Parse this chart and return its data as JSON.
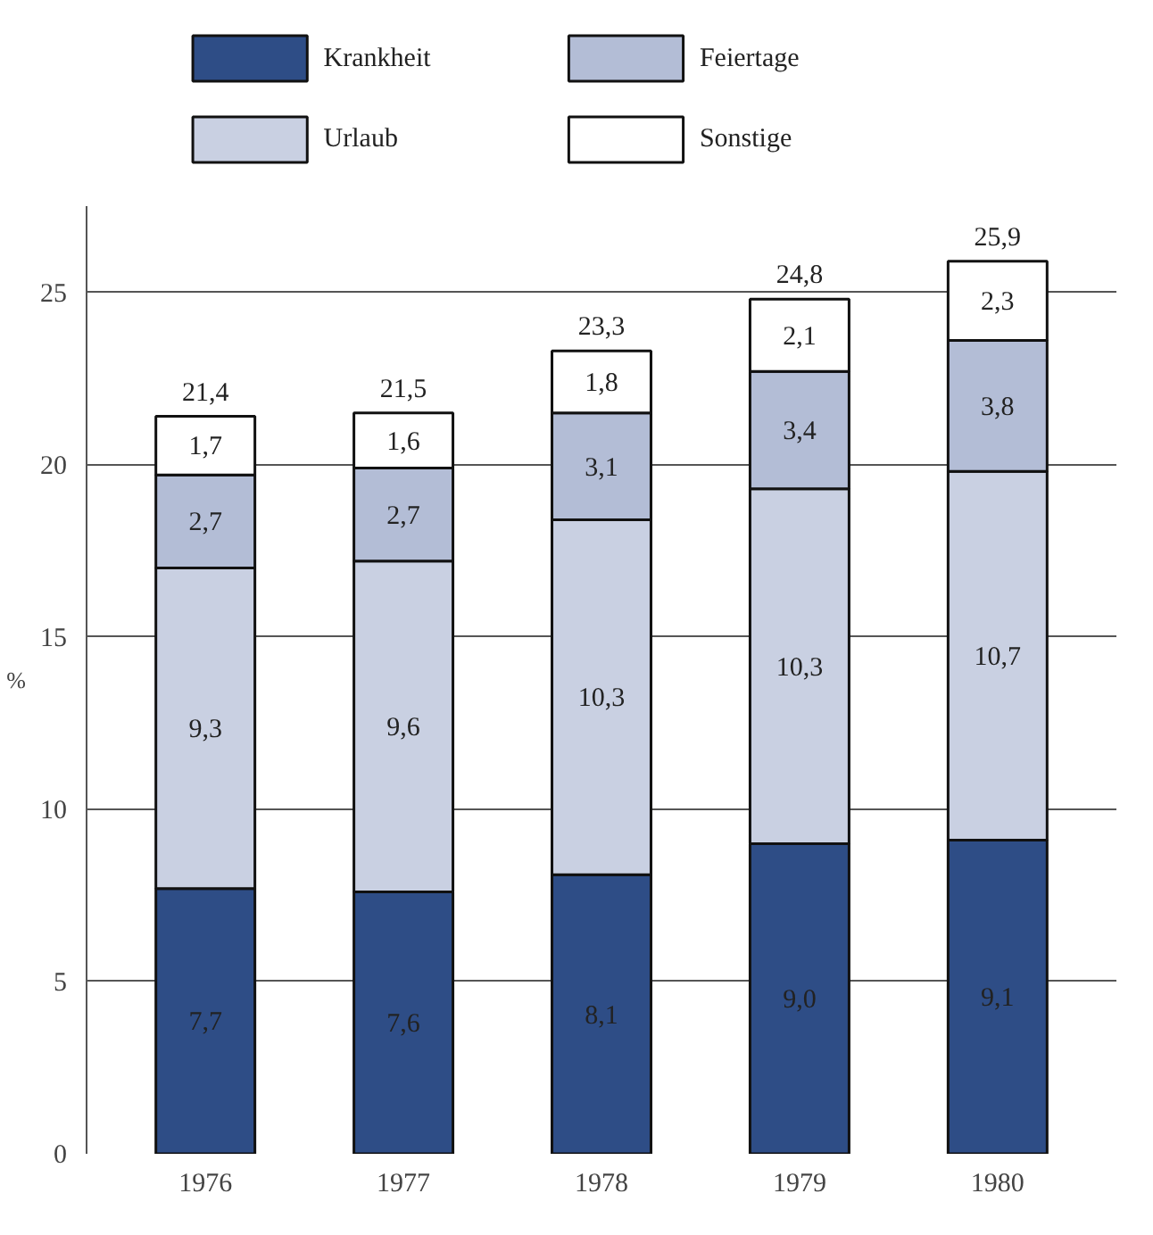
{
  "chart_data": {
    "type": "bar",
    "stacked": true,
    "ylabel": "%",
    "categories": [
      "1976",
      "1977",
      "1978",
      "1979",
      "1980"
    ],
    "series": [
      {
        "name": "Krankheit",
        "color": "#2e4d86",
        "values": [
          7.7,
          7.6,
          8.1,
          9.0,
          9.1
        ],
        "value_labels": [
          "7,7",
          "7,6",
          "8,1",
          "9,0",
          "9,1"
        ]
      },
      {
        "name": "Urlaub",
        "color": "#c9d0e2",
        "values": [
          9.3,
          9.6,
          10.3,
          10.3,
          10.7
        ],
        "value_labels": [
          "9,3",
          "9,6",
          "10,3",
          "10,3",
          "10,7"
        ]
      },
      {
        "name": "Feiertage",
        "color": "#b3bdd6",
        "values": [
          2.7,
          2.7,
          3.1,
          3.4,
          3.8
        ],
        "value_labels": [
          "2,7",
          "2,7",
          "3,1",
          "3,4",
          "3,8"
        ]
      },
      {
        "name": "Sonstige",
        "color": "#ffffff",
        "values": [
          1.7,
          1.6,
          1.8,
          2.1,
          2.3
        ],
        "value_labels": [
          "1,7",
          "1,6",
          "1,8",
          "2,1",
          "2,3"
        ]
      }
    ],
    "totals": [
      "21,4",
      "21,5",
      "23,3",
      "24,8",
      "25,9"
    ],
    "ylim": [
      0,
      27.5
    ],
    "yticks": [
      0,
      5,
      10,
      15,
      20,
      25
    ],
    "grid": "y",
    "legend": "top"
  }
}
